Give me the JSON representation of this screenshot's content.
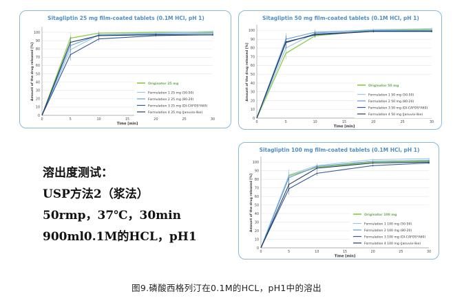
{
  "method_text": {
    "line1": "溶出度测试：",
    "line2": "USP方法2（浆法）",
    "line3": "50rmp，37℃，30min",
    "line4": "900ml0.1M的HCL，pH1"
  },
  "caption": "图9.磷酸西格列汀在0.1M的HCL，pH1中的溶出",
  "chart_data": [
    {
      "type": "line",
      "title": "Sitagliptin 25 mg film-coated tablets (0.1M HCl, pH 1)",
      "xlabel": "Time [min]",
      "ylabel": "Amount of the drug released [%]",
      "x": [
        0,
        5,
        10,
        20,
        30
      ],
      "xticks": [
        0,
        5,
        10,
        15,
        20,
        25,
        30
      ],
      "yticks": [
        0,
        10,
        20,
        30,
        40,
        50,
        60,
        70,
        80,
        90,
        100
      ],
      "xlim": [
        0,
        30
      ],
      "ylim": [
        0,
        105
      ],
      "grid": "horizontal",
      "legend_position": "right",
      "series": [
        {
          "name": "Originator 25 mg",
          "color": "#8fd14f",
          "values": [
            0,
            93,
            99,
            100,
            100
          ]
        },
        {
          "name": "Formulation 1 25 mg (50-50)",
          "color": "#9dc3e6",
          "values": [
            0,
            79,
            97,
            99,
            101
          ]
        },
        {
          "name": "Formulation 2 25 mg (80-20)",
          "color": "#5b9bd5",
          "values": [
            0,
            84,
            97,
            98,
            99
          ]
        },
        {
          "name": "Formulation 3 25 mg (DI-CAFOS*A60)",
          "color": "#2f5597",
          "values": [
            0,
            73,
            92,
            96,
            97
          ]
        },
        {
          "name": "Formulation 4 25 mg (Januvia-like)",
          "color": "#1f3864",
          "values": [
            0,
            88,
            96,
            97,
            97
          ]
        }
      ]
    },
    {
      "type": "line",
      "title": "Sitagliptin 50 mg film-coated tablets (0.1M HCl, pH 1)",
      "xlabel": "Time [min]",
      "ylabel": "Amount of the drug released [%]",
      "x": [
        0,
        5,
        10,
        20,
        30
      ],
      "xticks": [
        0,
        5,
        10,
        15,
        20,
        25,
        30
      ],
      "yticks": [
        0,
        10,
        20,
        30,
        40,
        50,
        60,
        70,
        80,
        90,
        100
      ],
      "xlim": [
        0,
        30
      ],
      "ylim": [
        0,
        105
      ],
      "grid": "horizontal",
      "legend_position": "right",
      "series": [
        {
          "name": "Originator 50 mg",
          "color": "#8fd14f",
          "values": [
            0,
            74,
            94,
            100,
            101
          ]
        },
        {
          "name": "Formulation 1 50 mg (50-50)",
          "color": "#9dc3e6",
          "values": [
            0,
            80,
            97,
            101,
            102
          ]
        },
        {
          "name": "Formulation 2 50 mg (80-20)",
          "color": "#5b9bd5",
          "values": [
            0,
            90,
            98,
            100,
            100
          ]
        },
        {
          "name": "Formulation 3 50 mg (DI-CAFOS*A60)",
          "color": "#2f5597",
          "values": [
            0,
            86,
            96,
            99,
            99
          ]
        },
        {
          "name": "Formulation 4 50 mg (Januvia-like)",
          "color": "#1f3864",
          "values": [
            0,
            87,
            95,
            99,
            99
          ]
        }
      ]
    },
    {
      "type": "line",
      "title": "Sitagliptin 100 mg film-coated tablets (0.1M HCl, pH 1)",
      "xlabel": "Time [min]",
      "ylabel": "Amount of the drug released [%]",
      "x": [
        0,
        5,
        10,
        20,
        30
      ],
      "xticks": [
        0,
        5,
        10,
        15,
        20,
        25,
        30
      ],
      "yticks": [
        0,
        10,
        20,
        30,
        40,
        50,
        60,
        70,
        80,
        90,
        100
      ],
      "xlim": [
        0,
        30
      ],
      "ylim": [
        0,
        105
      ],
      "grid": "horizontal",
      "legend_position": "right",
      "series": [
        {
          "name": "Originator 100 mg",
          "color": "#8fd14f",
          "values": [
            0,
            84,
            94,
            100,
            101
          ]
        },
        {
          "name": "Formulation 1 100 mg (50-50)",
          "color": "#9dc3e6",
          "values": [
            0,
            85,
            96,
            103,
            104
          ]
        },
        {
          "name": "Formulation 2 100 mg (80-20)",
          "color": "#5b9bd5",
          "values": [
            0,
            82,
            95,
            101,
            102
          ]
        },
        {
          "name": "Formulation 3 100 mg (DI-CAFOS*A60)",
          "color": "#2f5597",
          "values": [
            0,
            69,
            87,
            96,
            99
          ]
        },
        {
          "name": "Formulation 4 100 mg (Januvia-like)",
          "color": "#1f3864",
          "values": [
            0,
            74,
            93,
            99,
            100
          ]
        }
      ]
    }
  ]
}
